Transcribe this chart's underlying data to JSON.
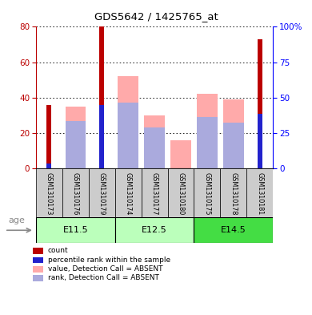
{
  "title": "GDS5642 / 1425765_at",
  "samples": [
    "GSM1310173",
    "GSM1310176",
    "GSM1310179",
    "GSM1310174",
    "GSM1310177",
    "GSM1310180",
    "GSM1310175",
    "GSM1310178",
    "GSM1310181"
  ],
  "count_values": [
    36,
    0,
    80,
    0,
    0,
    0,
    0,
    0,
    73
  ],
  "pct_rank_values": [
    3,
    0,
    36,
    0,
    0,
    0,
    0,
    0,
    31
  ],
  "absent_value": [
    0,
    35,
    0,
    52,
    30,
    16,
    42,
    39,
    0
  ],
  "absent_rank": [
    0,
    27,
    0,
    37,
    23,
    0,
    29,
    26,
    0
  ],
  "ylim_left": [
    0,
    80
  ],
  "ylim_right": [
    0,
    100
  ],
  "yticks_left": [
    0,
    20,
    40,
    60,
    80
  ],
  "yticks_right": [
    0,
    25,
    50,
    75,
    100
  ],
  "bar_width": 0.35,
  "count_color": "#BB0000",
  "pct_rank_color": "#2222CC",
  "absent_value_color": "#FFAAAA",
  "absent_rank_color": "#AAAADD",
  "group_edges": [
    {
      "start": 0,
      "end": 3,
      "label": "E11.5",
      "color": "#BBFFBB"
    },
    {
      "start": 3,
      "end": 6,
      "label": "E12.5",
      "color": "#BBFFBB"
    },
    {
      "start": 6,
      "end": 9,
      "label": "E14.5",
      "color": "#44DD44"
    }
  ],
  "legend_items": [
    {
      "label": "count",
      "color": "#BB0000"
    },
    {
      "label": "percentile rank within the sample",
      "color": "#2222CC"
    },
    {
      "label": "value, Detection Call = ABSENT",
      "color": "#FFAAAA"
    },
    {
      "label": "rank, Detection Call = ABSENT",
      "color": "#AAAADD"
    }
  ]
}
